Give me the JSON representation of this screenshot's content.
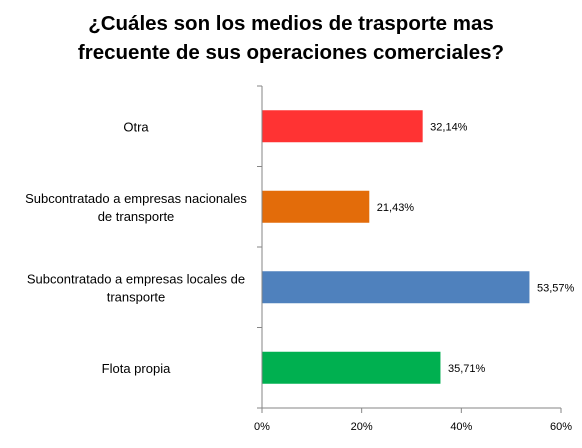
{
  "chart_data": {
    "type": "bar",
    "orientation": "horizontal",
    "title_lines": [
      "¿Cuáles son los medios de trasporte mas",
      "frecuente de sus operaciones comerciales?"
    ],
    "categories": [
      [
        "Otra"
      ],
      [
        "Subcontratado a empresas nacionales",
        "de transporte"
      ],
      [
        "Subcontratado a empresas locales de",
        "transporte"
      ],
      [
        "Flota propia"
      ]
    ],
    "values": [
      32.14,
      21.43,
      53.57,
      35.71
    ],
    "data_labels": [
      "32,14%",
      "21,43%",
      "53,57%",
      "35,71%"
    ],
    "colors": [
      "#FF3333",
      "#E36C0A",
      "#4F81BD",
      "#00B050"
    ],
    "xlim": [
      0,
      60
    ],
    "x_ticks": [
      0,
      20,
      40,
      60
    ],
    "x_tick_labels": [
      "0%",
      "20%",
      "40%",
      "60%"
    ],
    "xlabel": "",
    "ylabel": "",
    "grid": false,
    "legend": "none"
  }
}
